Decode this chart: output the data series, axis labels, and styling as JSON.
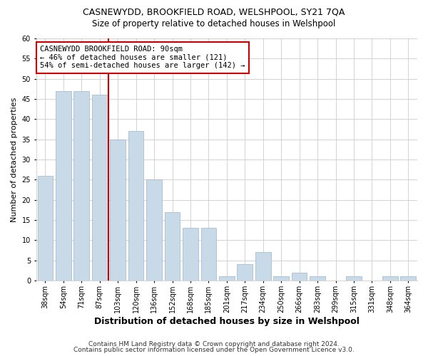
{
  "title": "CASNEWYDD, BROOKFIELD ROAD, WELSHPOOL, SY21 7QA",
  "subtitle": "Size of property relative to detached houses in Welshpool",
  "xlabel": "Distribution of detached houses by size in Welshpool",
  "ylabel": "Number of detached properties",
  "footnote1": "Contains HM Land Registry data © Crown copyright and database right 2024.",
  "footnote2": "Contains public sector information licensed under the Open Government Licence v3.0.",
  "categories": [
    "38sqm",
    "54sqm",
    "71sqm",
    "87sqm",
    "103sqm",
    "120sqm",
    "136sqm",
    "152sqm",
    "168sqm",
    "185sqm",
    "201sqm",
    "217sqm",
    "234sqm",
    "250sqm",
    "266sqm",
    "283sqm",
    "299sqm",
    "315sqm",
    "331sqm",
    "348sqm",
    "364sqm"
  ],
  "values": [
    26,
    47,
    47,
    46,
    35,
    37,
    25,
    17,
    13,
    13,
    1,
    4,
    7,
    1,
    2,
    1,
    0,
    1,
    0,
    1,
    1
  ],
  "bar_color": "#c8d9e8",
  "bar_edge_color": "#9ab5cc",
  "grid_color": "#cccccc",
  "vline_color": "#cc0000",
  "vline_x_index": 3,
  "annotation_text": "CASNEWYDD BROOKFIELD ROAD: 90sqm\n← 46% of detached houses are smaller (121)\n54% of semi-detached houses are larger (142) →",
  "annotation_box_facecolor": "#ffffff",
  "annotation_box_edgecolor": "#cc0000",
  "ylim": [
    0,
    60
  ],
  "yticks": [
    0,
    5,
    10,
    15,
    20,
    25,
    30,
    35,
    40,
    45,
    50,
    55,
    60
  ],
  "background_color": "#ffffff",
  "title_fontsize": 9,
  "subtitle_fontsize": 8.5,
  "ylabel_fontsize": 8,
  "xlabel_fontsize": 9,
  "tick_fontsize": 7,
  "footnote_fontsize": 6.5
}
